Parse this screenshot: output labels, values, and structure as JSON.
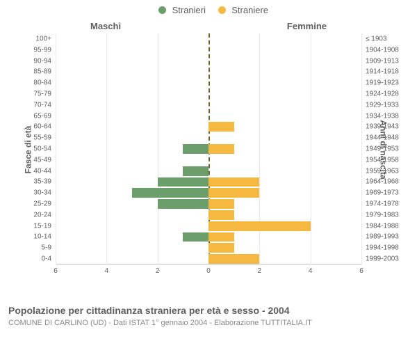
{
  "legend": {
    "male": {
      "label": "Stranieri",
      "color": "#6b9e6b"
    },
    "female": {
      "label": "Straniere",
      "color": "#f5b942"
    }
  },
  "columns": {
    "left": "Maschi",
    "right": "Femmine"
  },
  "axis_titles": {
    "left": "Fasce di età",
    "right": "Anni di nascita"
  },
  "x_axis": {
    "max": 6,
    "ticks": [
      6,
      4,
      2,
      0,
      2,
      4,
      6
    ]
  },
  "center_axis_color": "#6b6b2f",
  "rows": [
    {
      "age": "100+",
      "birth": "≤ 1903",
      "m": 0,
      "f": 0
    },
    {
      "age": "95-99",
      "birth": "1904-1908",
      "m": 0,
      "f": 0
    },
    {
      "age": "90-94",
      "birth": "1909-1913",
      "m": 0,
      "f": 0
    },
    {
      "age": "85-89",
      "birth": "1914-1918",
      "m": 0,
      "f": 0
    },
    {
      "age": "80-84",
      "birth": "1919-1923",
      "m": 0,
      "f": 0
    },
    {
      "age": "75-79",
      "birth": "1924-1928",
      "m": 0,
      "f": 0
    },
    {
      "age": "70-74",
      "birth": "1929-1933",
      "m": 0,
      "f": 0
    },
    {
      "age": "65-69",
      "birth": "1934-1938",
      "m": 0,
      "f": 0
    },
    {
      "age": "60-64",
      "birth": "1939-1943",
      "m": 0,
      "f": 1
    },
    {
      "age": "55-59",
      "birth": "1944-1948",
      "m": 0,
      "f": 0
    },
    {
      "age": "50-54",
      "birth": "1949-1953",
      "m": 1,
      "f": 1
    },
    {
      "age": "45-49",
      "birth": "1954-1958",
      "m": 0,
      "f": 0
    },
    {
      "age": "40-44",
      "birth": "1959-1963",
      "m": 1,
      "f": 0
    },
    {
      "age": "35-39",
      "birth": "1964-1968",
      "m": 2,
      "f": 2
    },
    {
      "age": "30-34",
      "birth": "1969-1973",
      "m": 3,
      "f": 2
    },
    {
      "age": "25-29",
      "birth": "1974-1978",
      "m": 2,
      "f": 1
    },
    {
      "age": "20-24",
      "birth": "1979-1983",
      "m": 0,
      "f": 1
    },
    {
      "age": "15-19",
      "birth": "1984-1988",
      "m": 0,
      "f": 4
    },
    {
      "age": "10-14",
      "birth": "1989-1993",
      "m": 1,
      "f": 1
    },
    {
      "age": "5-9",
      "birth": "1994-1998",
      "m": 0,
      "f": 1
    },
    {
      "age": "0-4",
      "birth": "1999-2003",
      "m": 0,
      "f": 2
    }
  ],
  "footer": {
    "line1": "Popolazione per cittadinanza straniera per età e sesso - 2004",
    "line2": "COMUNE DI CARLINO (UD) - Dati ISTAT 1° gennaio 2004 - Elaborazione TUTTITALIA.IT"
  }
}
